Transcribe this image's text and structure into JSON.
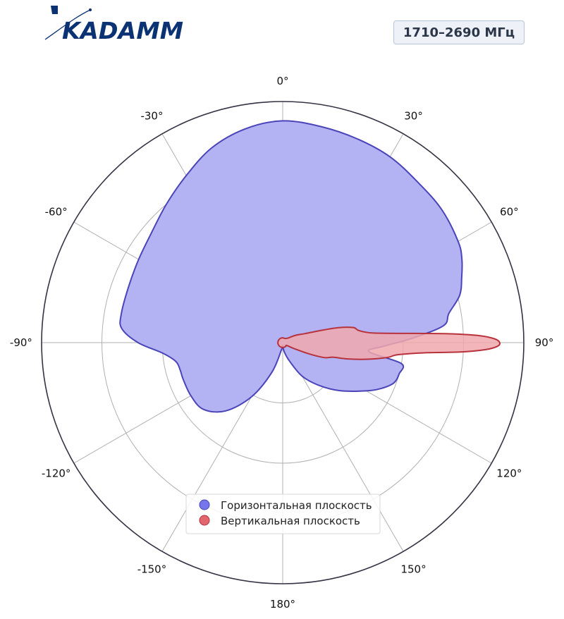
{
  "header": {
    "logo_text": "KADAMM",
    "badge": "1710–2690 МГц"
  },
  "colors": {
    "logo": "#0b3273",
    "horizontal_fill": "#b3b3f4",
    "horizontal_line": "#4a44b8",
    "horizontal_marker": "#7676ec",
    "vertical_fill": "#f0a8ae",
    "vertical_line": "#b8323c",
    "vertical_marker": "#e2646c",
    "grid": "#b0b0b0",
    "outer_ring": "#333344"
  },
  "chart_data": {
    "type": "polar",
    "title": "",
    "angle_direction": "clockwise",
    "zero_location": "top",
    "r_range": [
      0,
      1
    ],
    "r_gridlines": [
      0.25,
      0.5,
      0.75
    ],
    "angle_ticks": [
      0,
      30,
      60,
      90,
      120,
      150,
      180,
      -150,
      -120,
      -90,
      -60,
      -30
    ],
    "angle_tick_labels": [
      "0°",
      "30°",
      "60°",
      "90°",
      "120°",
      "150°",
      "180°",
      "-150°",
      "-120°",
      "-90°",
      "-60°",
      "-30°"
    ],
    "grid": true,
    "legend_position": "bottom-center",
    "series": [
      {
        "name": "Горизонтальная плоскость",
        "angles_deg": [
          0,
          10,
          20,
          30,
          40,
          50,
          60,
          65,
          70,
          75,
          80,
          84,
          88,
          92,
          96,
          100,
          105,
          110,
          115,
          120,
          130,
          140,
          150,
          160,
          170,
          176,
          180,
          186,
          190,
          200,
          210,
          220,
          230,
          240,
          250,
          255,
          260,
          265,
          270,
          275,
          280,
          290,
          300,
          310,
          320,
          330,
          340,
          350
        ],
        "r": [
          0.92,
          0.91,
          0.9,
          0.89,
          0.87,
          0.86,
          0.84,
          0.82,
          0.79,
          0.76,
          0.7,
          0.67,
          0.54,
          0.42,
          0.36,
          0.5,
          0.5,
          0.49,
          0.45,
          0.4,
          0.31,
          0.23,
          0.16,
          0.08,
          0.04,
          0.02,
          0.01,
          0.02,
          0.03,
          0.13,
          0.26,
          0.37,
          0.43,
          0.44,
          0.44,
          0.44,
          0.45,
          0.5,
          0.6,
          0.67,
          0.68,
          0.68,
          0.69,
          0.71,
          0.75,
          0.8,
          0.86,
          0.9
        ]
      },
      {
        "name": "Вертикальная плоскость",
        "angles_deg": [
          0,
          30,
          50,
          60,
          68,
          72,
          75,
          78,
          81,
          84,
          86,
          87,
          88,
          89,
          90,
          91,
          92,
          93,
          94,
          96,
          98,
          101,
          104,
          106,
          108,
          110,
          113,
          118,
          125,
          140,
          160,
          180,
          200,
          220,
          240,
          260,
          280,
          300,
          320,
          340
        ],
        "r": [
          0.02,
          0.02,
          0.03,
          0.06,
          0.1,
          0.16,
          0.24,
          0.3,
          0.32,
          0.38,
          0.55,
          0.7,
          0.82,
          0.88,
          0.9,
          0.89,
          0.84,
          0.74,
          0.6,
          0.48,
          0.44,
          0.36,
          0.28,
          0.22,
          0.2,
          0.18,
          0.12,
          0.05,
          0.02,
          0.02,
          0.02,
          0.02,
          0.02,
          0.02,
          0.02,
          0.02,
          0.02,
          0.02,
          0.02,
          0.02
        ]
      }
    ]
  }
}
